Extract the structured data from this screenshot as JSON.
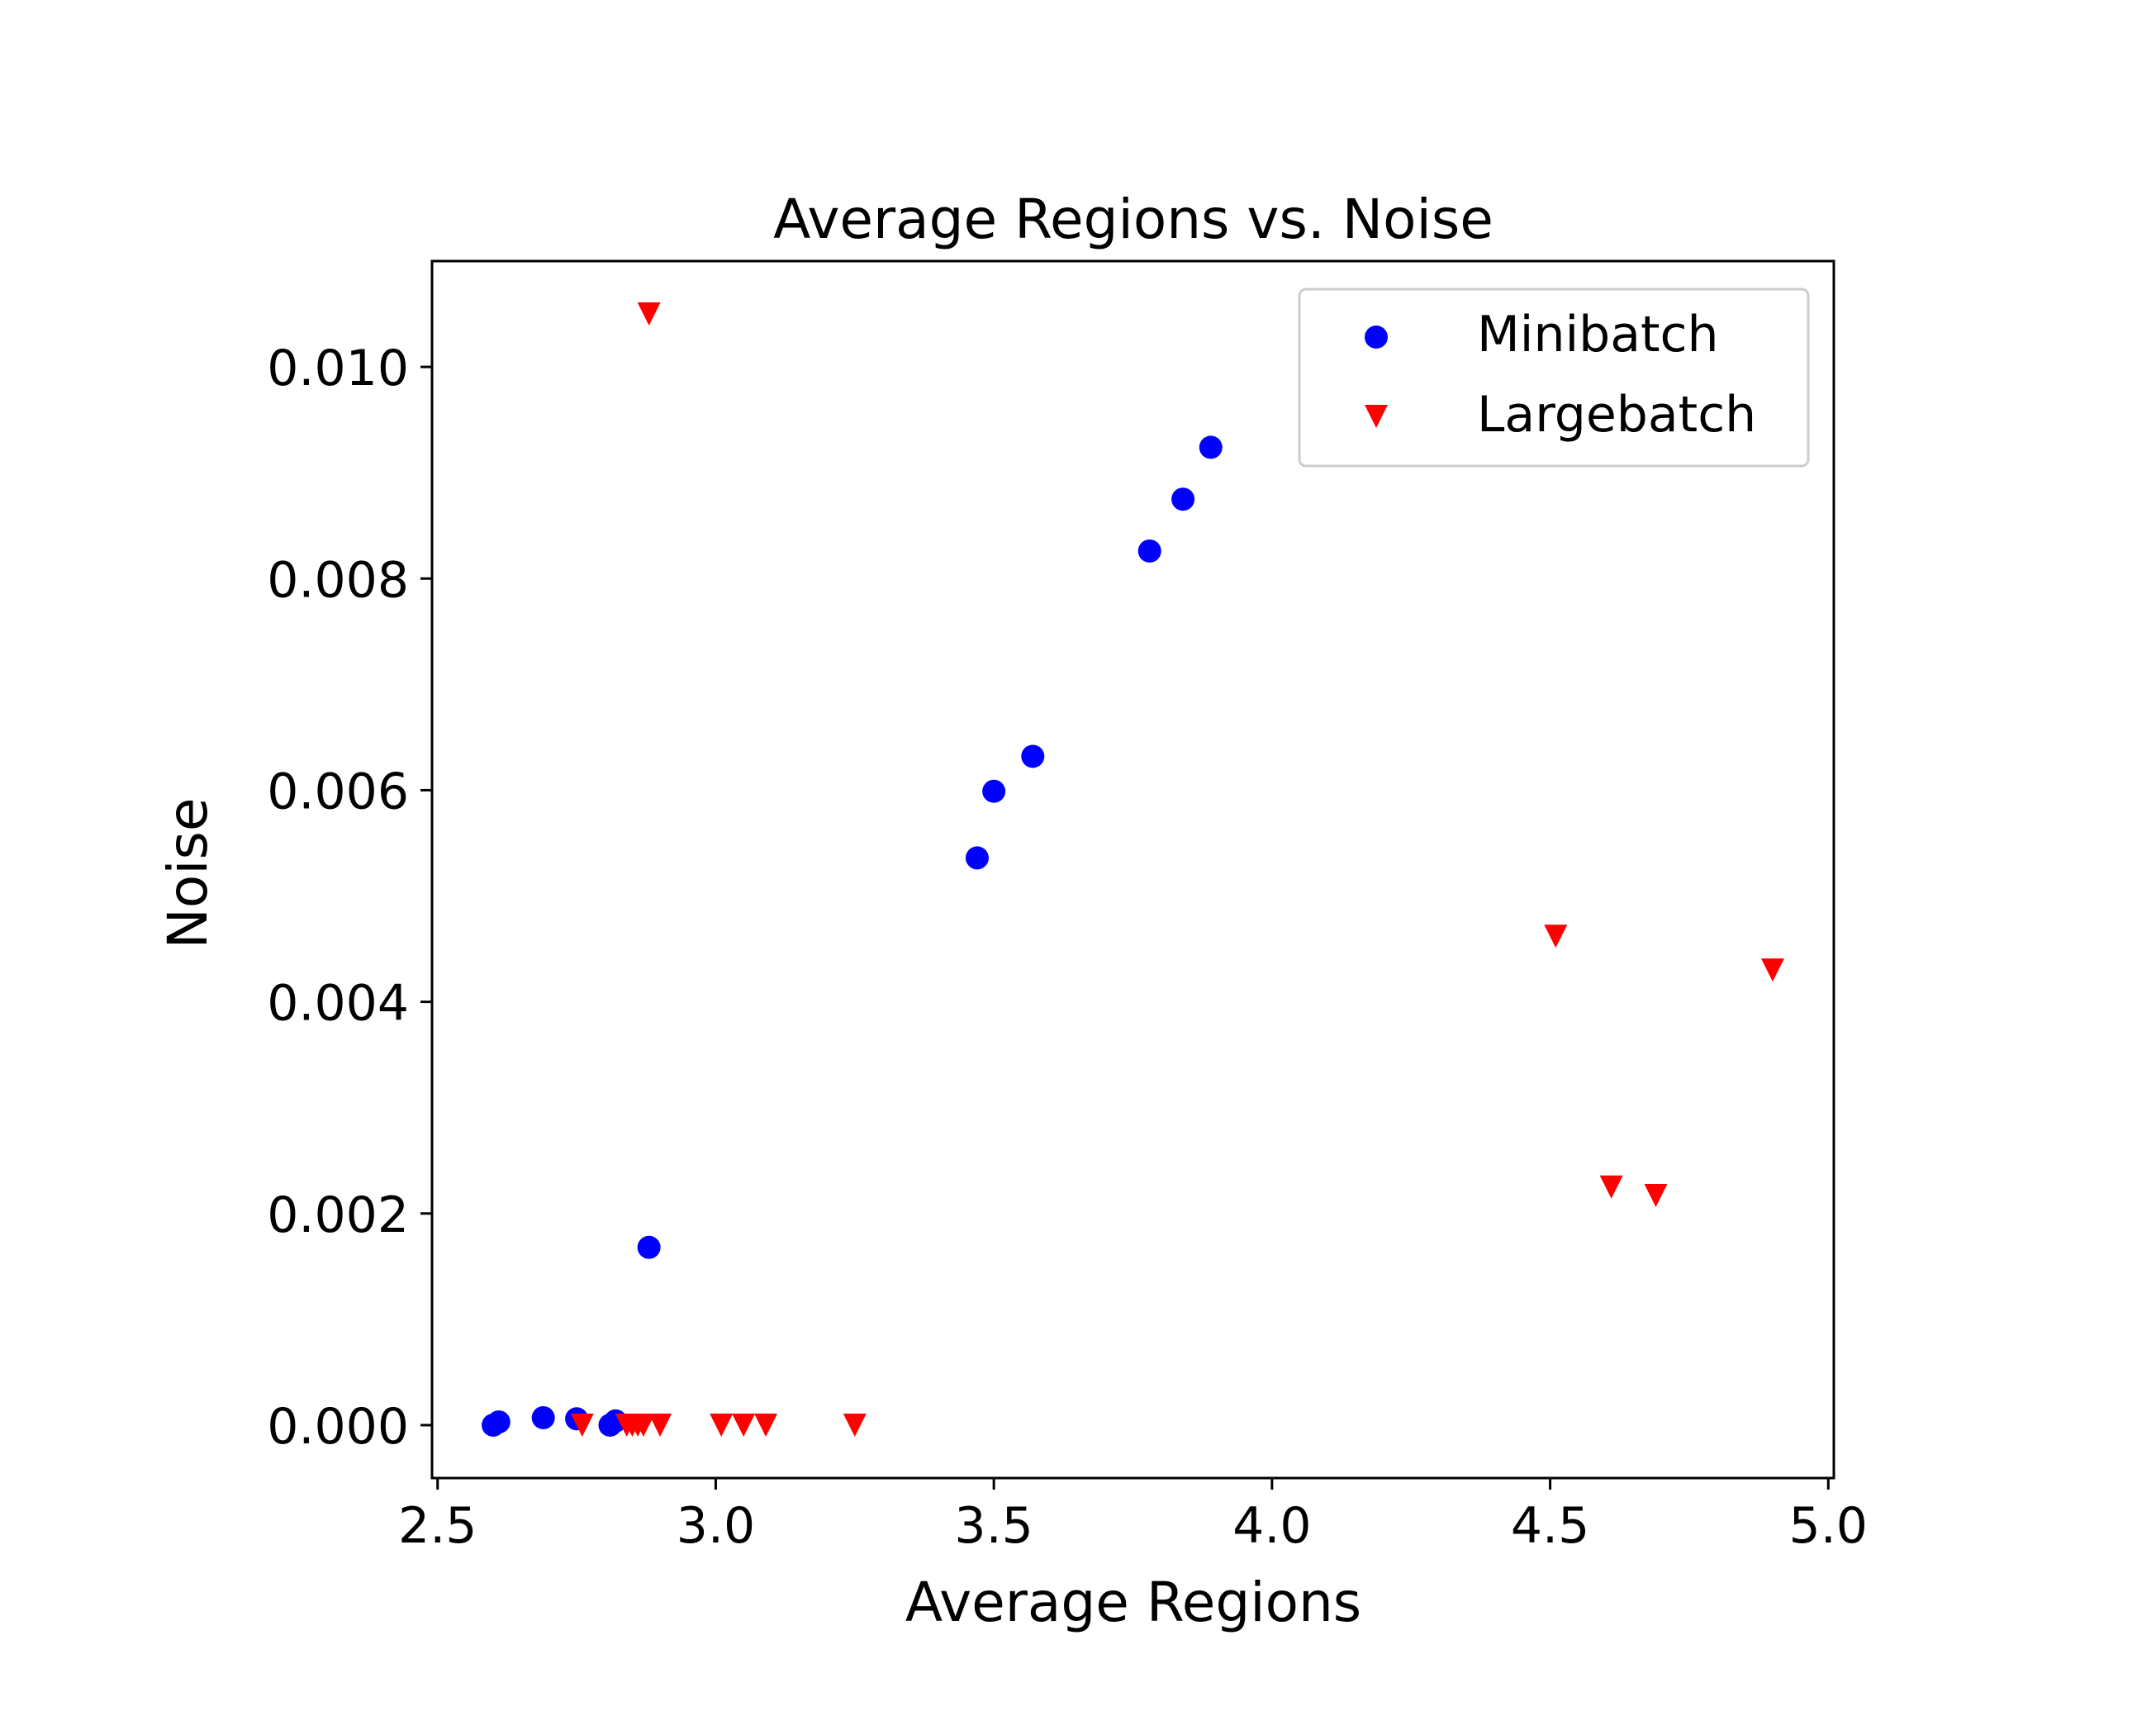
{
  "chart_data": {
    "type": "scatter",
    "title": "Average Regions vs. Noise",
    "xlabel": "Average Regions",
    "ylabel": "Noise",
    "xlim": [
      2.49,
      5.01
    ],
    "ylim": [
      -0.0005,
      0.011
    ],
    "xticks": [
      2.5,
      3.0,
      3.5,
      4.0,
      4.5,
      5.0
    ],
    "xtick_labels": [
      "2.5",
      "3.0",
      "3.5",
      "4.0",
      "4.5",
      "5.0"
    ],
    "yticks": [
      0.0,
      0.002,
      0.004,
      0.006,
      0.008,
      0.01
    ],
    "ytick_labels": [
      "0.000",
      "0.002",
      "0.004",
      "0.006",
      "0.008",
      "0.010"
    ],
    "grid": false,
    "legend_position": "top-right",
    "series": [
      {
        "name": "Minibatch",
        "marker": "circle",
        "color": "#0000ff",
        "points": [
          [
            2.6,
            0.0
          ],
          [
            2.61,
            3e-05
          ],
          [
            2.69,
            7e-05
          ],
          [
            2.75,
            6e-05
          ],
          [
            2.81,
            0.0
          ],
          [
            2.82,
            4e-05
          ],
          [
            2.88,
            0.00168
          ],
          [
            3.47,
            0.00536
          ],
          [
            3.5,
            0.00599
          ],
          [
            3.57,
            0.00632
          ],
          [
            3.78,
            0.00826
          ],
          [
            3.84,
            0.00875
          ],
          [
            3.89,
            0.00924
          ]
        ]
      },
      {
        "name": "Largebatch",
        "marker": "triangle-down",
        "color": "#ff0000",
        "points": [
          [
            2.76,
            0.0
          ],
          [
            2.84,
            0.0
          ],
          [
            2.85,
            0.0
          ],
          [
            2.86,
            0.0
          ],
          [
            2.87,
            0.0
          ],
          [
            2.9,
            0.0
          ],
          [
            2.88,
            0.0105
          ],
          [
            3.01,
            0.0
          ],
          [
            3.05,
            0.0
          ],
          [
            3.09,
            0.0
          ],
          [
            3.25,
            0.0
          ],
          [
            4.51,
            0.00462
          ],
          [
            4.61,
            0.00225
          ],
          [
            4.69,
            0.00217
          ],
          [
            4.9,
            0.0043
          ]
        ]
      }
    ]
  }
}
